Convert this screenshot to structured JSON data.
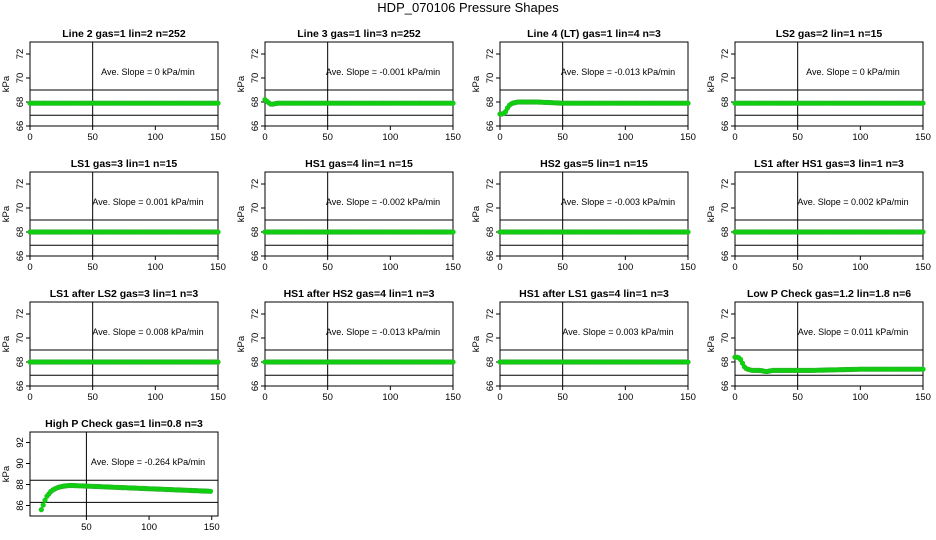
{
  "page": {
    "title": "HDP_070106  Pressure Shapes"
  },
  "styles": {
    "marker_fill": "#00dd00",
    "marker_stroke": "#33aa33",
    "axis_color": "#000000"
  },
  "chart_data": [
    {
      "type": "scatter",
      "title": "Line 2 gas=1 lin=2 n=252",
      "annotation": "Ave. Slope =  0  kPa/min",
      "ylabel": "kPa",
      "xlim": [
        0,
        150
      ],
      "ylim": [
        66,
        73
      ],
      "xticks": [
        0,
        50,
        100,
        150
      ],
      "yticks": [
        66,
        68,
        70,
        72
      ],
      "hlines": [
        66.9,
        69.0
      ],
      "vline": 50,
      "series": [
        {
          "x": [
            0,
            150
          ],
          "y": [
            67.9,
            67.9
          ]
        }
      ]
    },
    {
      "type": "scatter",
      "title": "Line 3 gas=1 lin=3 n=252",
      "annotation": "Ave. Slope =  -0.001  kPa/min",
      "ylabel": "kPa",
      "xlim": [
        0,
        150
      ],
      "ylim": [
        66,
        73
      ],
      "xticks": [
        0,
        50,
        100,
        150
      ],
      "yticks": [
        66,
        68,
        70,
        72
      ],
      "hlines": [
        66.9,
        69.0
      ],
      "vline": 50,
      "series": [
        {
          "x": [
            0,
            2,
            5,
            10,
            150
          ],
          "y": [
            68.2,
            68.0,
            67.8,
            67.9,
            67.9
          ]
        }
      ]
    },
    {
      "type": "scatter",
      "title": "Line 4 (LT) gas=1 lin=4 n=3",
      "annotation": "Ave. Slope =  -0.013  kPa/min",
      "ylabel": "kPa",
      "xlim": [
        0,
        150
      ],
      "ylim": [
        66,
        73
      ],
      "xticks": [
        0,
        50,
        100,
        150
      ],
      "yticks": [
        66,
        68,
        70,
        72
      ],
      "hlines": [
        66.9,
        69.0
      ],
      "vline": 50,
      "series": [
        {
          "x": [
            0,
            2,
            4,
            6,
            8,
            10,
            14,
            20,
            30,
            50,
            100,
            150
          ],
          "y": [
            67.0,
            67.0,
            67.1,
            67.5,
            67.8,
            67.9,
            68.0,
            68.0,
            68.0,
            67.9,
            67.9,
            67.9
          ]
        }
      ]
    },
    {
      "type": "scatter",
      "title": "LS2 gas=2 lin=1 n=15",
      "annotation": "Ave. Slope =  0  kPa/min",
      "ylabel": "kPa",
      "xlim": [
        0,
        150
      ],
      "ylim": [
        66,
        73
      ],
      "xticks": [
        0,
        50,
        100,
        150
      ],
      "yticks": [
        66,
        68,
        70,
        72
      ],
      "hlines": [
        66.9,
        69.0
      ],
      "vline": 50,
      "series": [
        {
          "x": [
            0,
            150
          ],
          "y": [
            67.9,
            67.9
          ]
        }
      ]
    },
    {
      "type": "scatter",
      "title": "LS1 gas=3 lin=1 n=15",
      "annotation": "Ave. Slope =  0.001  kPa/min",
      "ylabel": "kPa",
      "xlim": [
        0,
        150
      ],
      "ylim": [
        66,
        73
      ],
      "xticks": [
        0,
        50,
        100,
        150
      ],
      "yticks": [
        66,
        68,
        70,
        72
      ],
      "hlines": [
        66.9,
        69.0
      ],
      "vline": 50,
      "series": [
        {
          "x": [
            0,
            150
          ],
          "y": [
            68.0,
            68.0
          ]
        }
      ]
    },
    {
      "type": "scatter",
      "title": "HS1 gas=4 lin=1 n=15",
      "annotation": "Ave. Slope =  -0.002  kPa/min",
      "ylabel": "kPa",
      "xlim": [
        0,
        150
      ],
      "ylim": [
        66,
        73
      ],
      "xticks": [
        0,
        50,
        100,
        150
      ],
      "yticks": [
        66,
        68,
        70,
        72
      ],
      "hlines": [
        66.9,
        69.0
      ],
      "vline": 50,
      "series": [
        {
          "x": [
            0,
            150
          ],
          "y": [
            68.0,
            68.0
          ]
        }
      ]
    },
    {
      "type": "scatter",
      "title": "HS2 gas=5 lin=1 n=15",
      "annotation": "Ave. Slope =  -0.003  kPa/min",
      "ylabel": "kPa",
      "xlim": [
        0,
        150
      ],
      "ylim": [
        66,
        73
      ],
      "xticks": [
        0,
        50,
        100,
        150
      ],
      "yticks": [
        66,
        68,
        70,
        72
      ],
      "hlines": [
        66.9,
        69.0
      ],
      "vline": 50,
      "series": [
        {
          "x": [
            0,
            150
          ],
          "y": [
            68.0,
            68.0
          ]
        }
      ]
    },
    {
      "type": "scatter",
      "title": "LS1 after HS1 gas=3 lin=1 n=3",
      "annotation": "Ave. Slope =  0.002  kPa/min",
      "ylabel": "kPa",
      "xlim": [
        0,
        150
      ],
      "ylim": [
        66,
        73
      ],
      "xticks": [
        0,
        50,
        100,
        150
      ],
      "yticks": [
        66,
        68,
        70,
        72
      ],
      "hlines": [
        66.9,
        69.0
      ],
      "vline": 50,
      "series": [
        {
          "x": [
            0,
            150
          ],
          "y": [
            68.0,
            68.0
          ]
        }
      ]
    },
    {
      "type": "scatter",
      "title": "LS1 after LS2 gas=3 lin=1 n=3",
      "annotation": "Ave. Slope =  0.008  kPa/min",
      "ylabel": "kPa",
      "xlim": [
        0,
        150
      ],
      "ylim": [
        66,
        73
      ],
      "xticks": [
        0,
        50,
        100,
        150
      ],
      "yticks": [
        66,
        68,
        70,
        72
      ],
      "hlines": [
        66.9,
        69.0
      ],
      "vline": 50,
      "series": [
        {
          "x": [
            0,
            150
          ],
          "y": [
            68.0,
            68.0
          ]
        }
      ]
    },
    {
      "type": "scatter",
      "title": "HS1 after HS2 gas=4 lin=1 n=3",
      "annotation": "Ave. Slope =  -0.013  kPa/min",
      "ylabel": "kPa",
      "xlim": [
        0,
        150
      ],
      "ylim": [
        66,
        73
      ],
      "xticks": [
        0,
        50,
        100,
        150
      ],
      "yticks": [
        66,
        68,
        70,
        72
      ],
      "hlines": [
        66.9,
        69.0
      ],
      "vline": 50,
      "series": [
        {
          "x": [
            0,
            150
          ],
          "y": [
            68.0,
            68.0
          ]
        }
      ]
    },
    {
      "type": "scatter",
      "title": "HS1 after LS1 gas=4 lin=1 n=3",
      "annotation": "Ave. Slope =  0.003  kPa/min",
      "ylabel": "kPa",
      "xlim": [
        0,
        150
      ],
      "ylim": [
        66,
        73
      ],
      "xticks": [
        0,
        50,
        100,
        150
      ],
      "yticks": [
        66,
        68,
        70,
        72
      ],
      "hlines": [
        66.9,
        69.0
      ],
      "vline": 50,
      "series": [
        {
          "x": [
            0,
            150
          ],
          "y": [
            68.0,
            68.0
          ]
        }
      ]
    },
    {
      "type": "scatter",
      "title": "Low P Check gas=1.2 lin=1.8 n=6",
      "annotation": "Ave. Slope =  0.011  kPa/min",
      "ylabel": "kPa",
      "xlim": [
        0,
        150
      ],
      "ylim": [
        66,
        73
      ],
      "xticks": [
        0,
        50,
        100,
        150
      ],
      "yticks": [
        66,
        68,
        70,
        72
      ],
      "hlines": [
        66.9,
        69.0
      ],
      "vline": 50,
      "series": [
        {
          "x": [
            0,
            2,
            4,
            6,
            8,
            10,
            14,
            20,
            25,
            30,
            40,
            60,
            100,
            150
          ],
          "y": [
            68.4,
            68.4,
            68.3,
            67.9,
            67.5,
            67.4,
            67.3,
            67.3,
            67.2,
            67.3,
            67.3,
            67.3,
            67.4,
            67.4
          ]
        }
      ]
    },
    {
      "type": "scatter",
      "title": "High P Check gas=1 lin=0.8 n=3",
      "annotation": "Ave. Slope =  -0.264  kPa/min",
      "ylabel": "kPa",
      "xlim": [
        5,
        155
      ],
      "ylim": [
        85,
        93
      ],
      "xticks": [
        50,
        100,
        150
      ],
      "yticks": [
        86,
        88,
        90,
        92
      ],
      "hlines": [
        86.3,
        88.4
      ],
      "vline": 50,
      "series": [
        {
          "x": [
            14,
            15,
            16,
            17,
            18,
            20,
            22,
            25,
            28,
            32,
            36,
            40,
            50,
            60,
            80,
            100,
            120,
            150
          ],
          "y": [
            85.6,
            85.9,
            86.2,
            86.5,
            86.8,
            87.1,
            87.4,
            87.6,
            87.75,
            87.85,
            87.9,
            87.9,
            87.85,
            87.8,
            87.7,
            87.6,
            87.5,
            87.35
          ]
        }
      ]
    }
  ]
}
